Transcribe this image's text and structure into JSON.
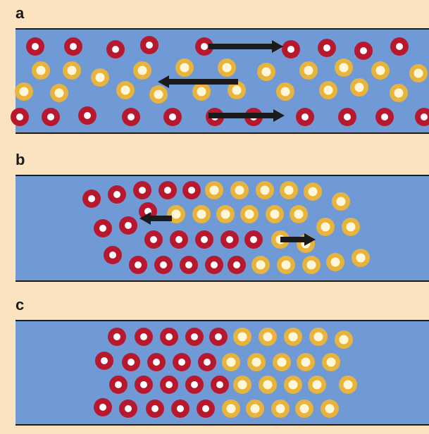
{
  "panels": [
    {
      "label": "a"
    },
    {
      "label": "b"
    },
    {
      "label": "c"
    }
  ],
  "colors": {
    "background": "#fbe3bf",
    "channel": "#6f9ad6",
    "red_particle": "#b8182e",
    "yellow_particle": "#e8b43c",
    "particle_core": "#ffffff",
    "arrow": "#1b1b1b"
  },
  "particle_kinds": [
    "red-ring-particle",
    "yellow-ring-particle"
  ],
  "arrow_directions": {
    "a": [
      "right",
      "left",
      "right"
    ],
    "b": [
      "left",
      "right"
    ],
    "c": []
  }
}
